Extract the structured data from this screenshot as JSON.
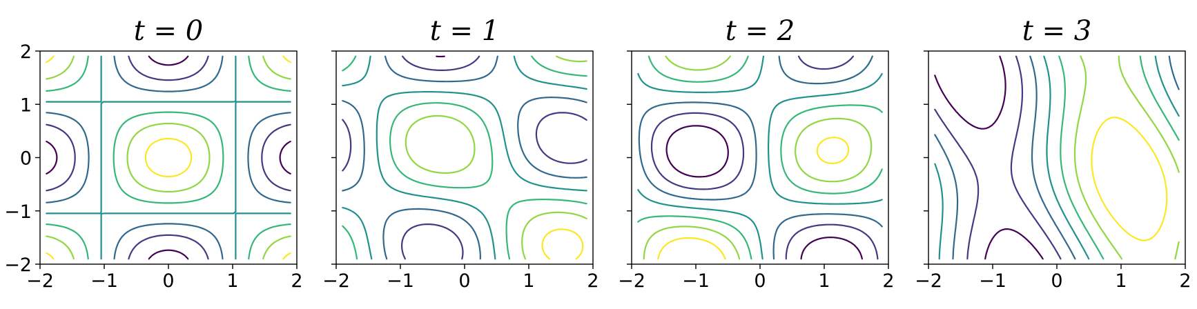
{
  "chart_data": [
    {
      "type": "contour",
      "title": "t = 0",
      "xlim": [
        -2,
        2
      ],
      "ylim": [
        -2,
        2
      ],
      "xticks": [
        -2,
        -1,
        0,
        1,
        2
      ],
      "yticks": [
        -2,
        -1,
        0,
        1,
        2
      ],
      "xtick_labels": [
        "−2",
        "−1",
        "0",
        "1",
        "2"
      ],
      "ytick_labels": [
        "−2",
        "−1",
        "0",
        "1",
        "2"
      ],
      "colormap": "viridis",
      "levels": 7
    },
    {
      "type": "contour",
      "title": "t = 1",
      "xlim": [
        -2,
        2
      ],
      "ylim": [
        -2,
        2
      ],
      "xticks": [
        -2,
        -1,
        0,
        1,
        2
      ],
      "yticks": [
        -2,
        -1,
        0,
        1,
        2
      ],
      "xtick_labels": [
        "−2",
        "−1",
        "0",
        "1",
        "2"
      ],
      "ytick_labels": [],
      "colormap": "viridis",
      "levels": 7
    },
    {
      "type": "contour",
      "title": "t = 2",
      "xlim": [
        -2,
        2
      ],
      "ylim": [
        -2,
        2
      ],
      "xticks": [
        -2,
        -1,
        0,
        1,
        2
      ],
      "yticks": [
        -2,
        -1,
        0,
        1,
        2
      ],
      "xtick_labels": [
        "−2",
        "−1",
        "0",
        "1",
        "2"
      ],
      "ytick_labels": [],
      "colormap": "viridis",
      "levels": 7
    },
    {
      "type": "contour",
      "title": "t = 3",
      "xlim": [
        -2,
        2
      ],
      "ylim": [
        -2,
        2
      ],
      "xticks": [
        -2,
        -1,
        0,
        1,
        2
      ],
      "yticks": [
        -2,
        -1,
        0,
        1,
        2
      ],
      "xtick_labels": [
        "−2",
        "−1",
        "0",
        "1",
        "2"
      ],
      "ytick_labels": [],
      "colormap": "viridis",
      "levels": 7
    }
  ]
}
